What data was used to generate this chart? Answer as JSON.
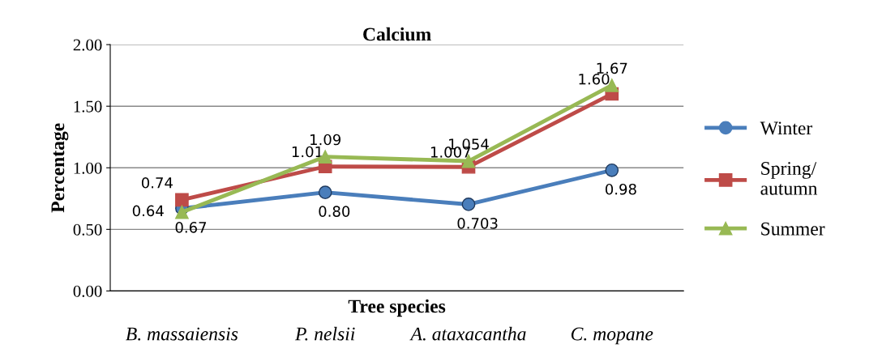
{
  "chart_data": {
    "type": "line",
    "title": "Calcium",
    "xlabel": "Tree species",
    "ylabel": "Percentage",
    "categories": [
      "B. massaiensis",
      "P. nelsii",
      "A. ataxacantha",
      "C. mopane"
    ],
    "series": [
      {
        "name": "Winter",
        "color": "#4a7ebb",
        "marker": "circle",
        "values": [
          0.67,
          0.8,
          0.703,
          0.98
        ],
        "value_labels": [
          "0.67",
          "0.80",
          "0.703",
          "0.98"
        ]
      },
      {
        "name": "Spring/\nautumn",
        "color": "#be4b48",
        "marker": "square",
        "values": [
          0.74,
          1.01,
          1.007,
          1.6
        ],
        "value_labels": [
          "0.74",
          "1.01",
          "1.007",
          "1.60"
        ]
      },
      {
        "name": "Summer",
        "color": "#98b954",
        "marker": "triangle",
        "values": [
          0.64,
          1.09,
          1.054,
          1.67
        ],
        "value_labels": [
          "0.64",
          "1.09",
          "1.054",
          "1.67"
        ]
      }
    ],
    "ylim": [
      0,
      2
    ],
    "yticks": [
      {
        "value": 0,
        "label": "0.00"
      },
      {
        "value": 0.5,
        "label": "0.50"
      },
      {
        "value": 1,
        "label": "1.00"
      },
      {
        "value": 1.5,
        "label": "1.50"
      },
      {
        "value": 2,
        "label": "2.00"
      }
    ],
    "grid": "y",
    "legend": "right"
  }
}
